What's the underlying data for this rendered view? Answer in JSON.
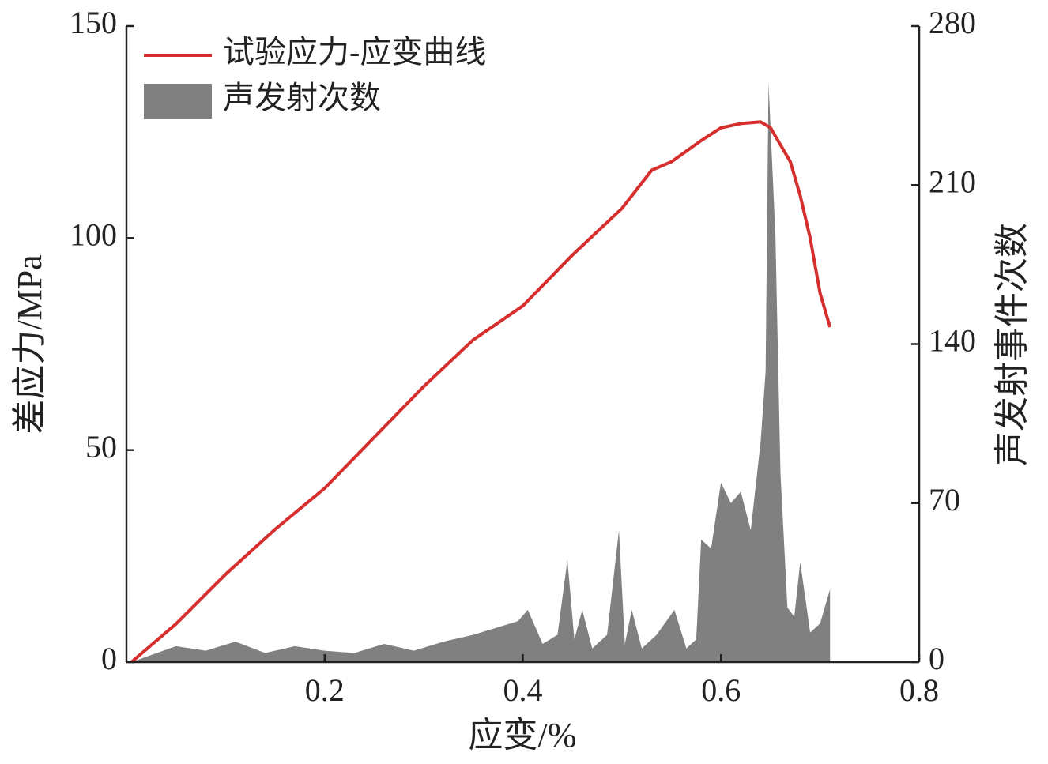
{
  "chart_data": {
    "type": "line",
    "xlabel": "应变/%",
    "ylabel": "差应力/MPa",
    "y2label": "声发射事件次数",
    "xlim": [
      0,
      0.8
    ],
    "xticks": [
      0.2,
      0.4,
      0.6,
      0.8
    ],
    "ylim": [
      0,
      150
    ],
    "yticks": [
      0,
      50,
      100,
      150
    ],
    "y2lim": [
      0,
      280
    ],
    "y2ticks": [
      0,
      70,
      140,
      210,
      280
    ],
    "legend": "upper left",
    "series": [
      {
        "name": "试验应力-应变曲线",
        "type": "line",
        "color": "#d62d2d",
        "x": [
          0.005,
          0.05,
          0.1,
          0.15,
          0.2,
          0.25,
          0.3,
          0.35,
          0.4,
          0.45,
          0.5,
          0.53,
          0.55,
          0.58,
          0.6,
          0.62,
          0.64,
          0.65,
          0.67,
          0.68,
          0.69,
          0.7,
          0.71
        ],
        "values": [
          0,
          9,
          20.7,
          31.3,
          41,
          53,
          65,
          76,
          84,
          96,
          107,
          116,
          118,
          123,
          126,
          127,
          127.4,
          126,
          118,
          110,
          100,
          87,
          79
        ]
      },
      {
        "name": "声发射次数",
        "type": "area",
        "axis": "y2",
        "color": "#808080",
        "x": [
          0.005,
          0.05,
          0.08,
          0.11,
          0.14,
          0.17,
          0.2,
          0.23,
          0.26,
          0.29,
          0.32,
          0.35,
          0.38,
          0.395,
          0.405,
          0.42,
          0.435,
          0.445,
          0.452,
          0.46,
          0.47,
          0.485,
          0.497,
          0.503,
          0.51,
          0.52,
          0.535,
          0.553,
          0.565,
          0.575,
          0.58,
          0.59,
          0.6,
          0.61,
          0.62,
          0.63,
          0.64,
          0.645,
          0.648,
          0.655,
          0.66,
          0.667,
          0.674,
          0.68,
          0.69,
          0.7,
          0.71,
          0.71
        ],
        "values": [
          0,
          7,
          5,
          9,
          4,
          7,
          5,
          4,
          8,
          5,
          9,
          12,
          16,
          18,
          23,
          8,
          12,
          45,
          10,
          23,
          6,
          12,
          58,
          8,
          23,
          6,
          12,
          23,
          6,
          10,
          54,
          50,
          79,
          70,
          75,
          58,
          97,
          128,
          255,
          187,
          83,
          24,
          20,
          44,
          13,
          17,
          32,
          0
        ]
      }
    ]
  }
}
